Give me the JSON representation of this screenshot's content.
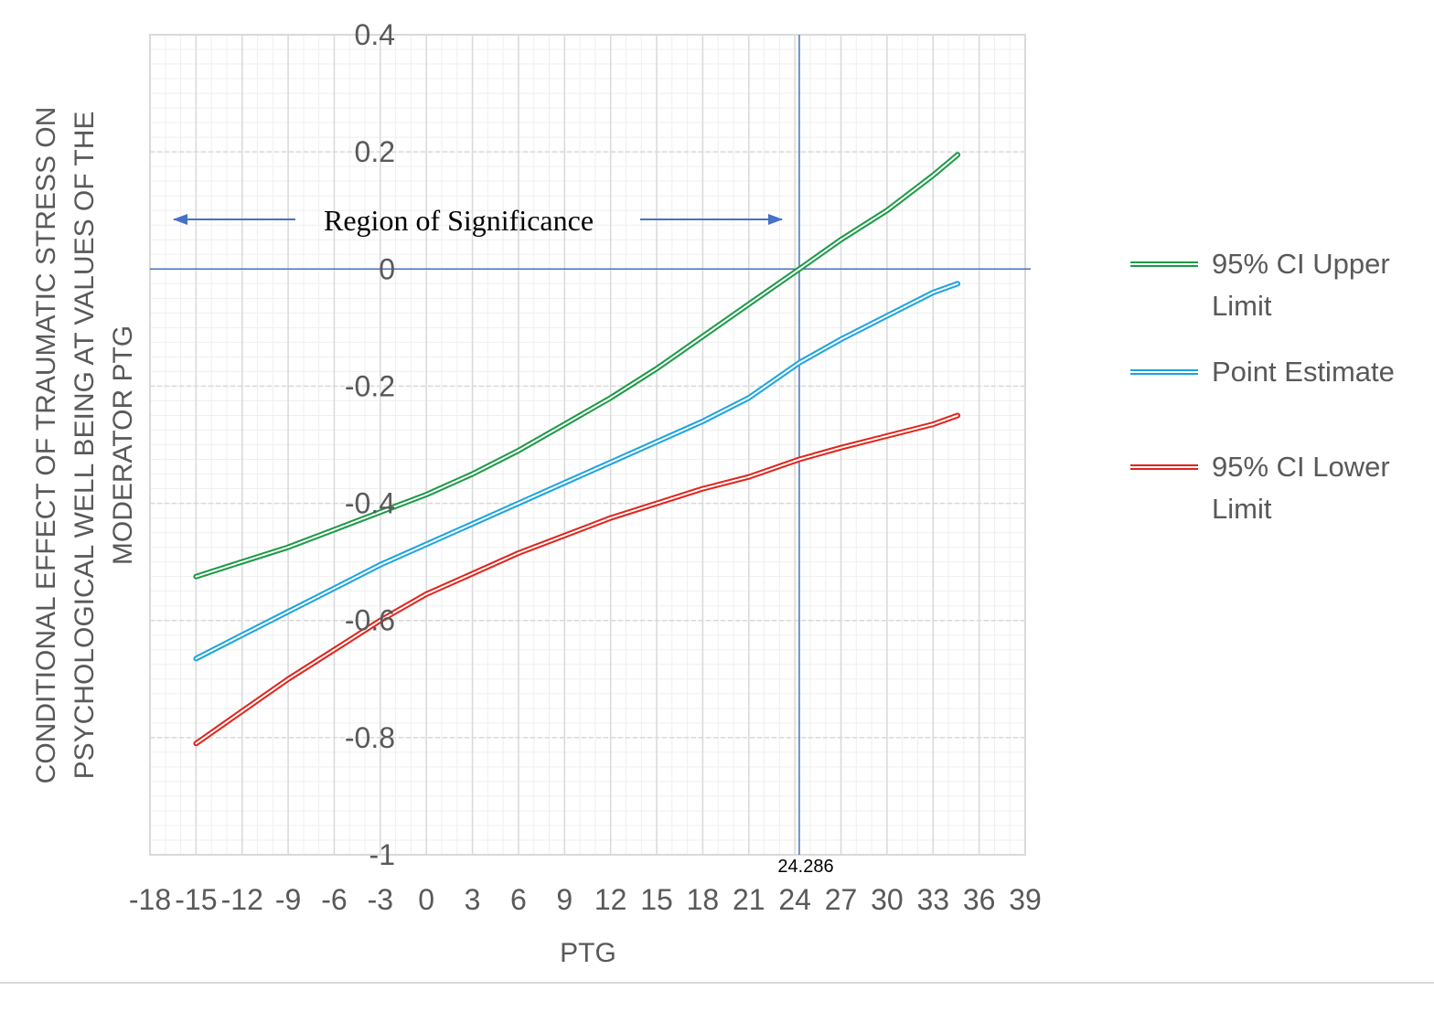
{
  "chart_data": {
    "type": "line",
    "title": "",
    "xlabel": "PTG",
    "ylabel_lines": [
      "CONDITIONAL EFFECT OF TRAUMATIC STRESS ON",
      "PSYCHOLOGICAL WELL BEING AT VALUES OF THE",
      "MODERATOR PTG"
    ],
    "xlim": [
      -18,
      39
    ],
    "ylim": [
      -1,
      0.4
    ],
    "x_ticks": [
      "-18",
      "-15",
      "-12",
      "-9",
      "-6",
      "-3",
      "0",
      "3",
      "6",
      "9",
      "12",
      "15",
      "18",
      "21",
      "24",
      "27",
      "30",
      "33",
      "36",
      "39"
    ],
    "y_ticks": [
      "0.4",
      "0.2",
      "0",
      "-0.2",
      "-0.4",
      "-0.6",
      "-0.8",
      "-1"
    ],
    "grid": true,
    "legend_position": "right",
    "reference_lines": {
      "x": 24.286,
      "y": 0
    },
    "reference_label": "24.286",
    "annotation": "Region of Significance",
    "x": [
      -15,
      -12,
      -9,
      -6,
      -3,
      0,
      3,
      6,
      9,
      12,
      15,
      18,
      21,
      24.286,
      27,
      30,
      33,
      34.6
    ],
    "series": [
      {
        "name": "95% CI Upper Limit",
        "color": "#1a9a45",
        "values": [
          -0.525,
          -0.5,
          -0.475,
          -0.445,
          -0.415,
          -0.385,
          -0.35,
          -0.31,
          -0.265,
          -0.22,
          -0.17,
          -0.115,
          -0.06,
          0.0,
          0.05,
          0.1,
          0.16,
          0.195
        ]
      },
      {
        "name": "Point Estimate",
        "color": "#1aa3e0",
        "values": [
          -0.665,
          -0.625,
          -0.585,
          -0.545,
          -0.505,
          -0.47,
          -0.435,
          -0.4,
          -0.365,
          -0.33,
          -0.295,
          -0.26,
          -0.22,
          -0.16,
          -0.12,
          -0.08,
          -0.04,
          -0.025
        ]
      },
      {
        "name": "95% CI Lower Limit",
        "color": "#e2231a",
        "values": [
          -0.81,
          -0.755,
          -0.7,
          -0.65,
          -0.6,
          -0.555,
          -0.52,
          -0.485,
          -0.455,
          -0.425,
          -0.4,
          -0.375,
          -0.355,
          -0.325,
          -0.305,
          -0.285,
          -0.265,
          -0.25
        ]
      }
    ]
  }
}
